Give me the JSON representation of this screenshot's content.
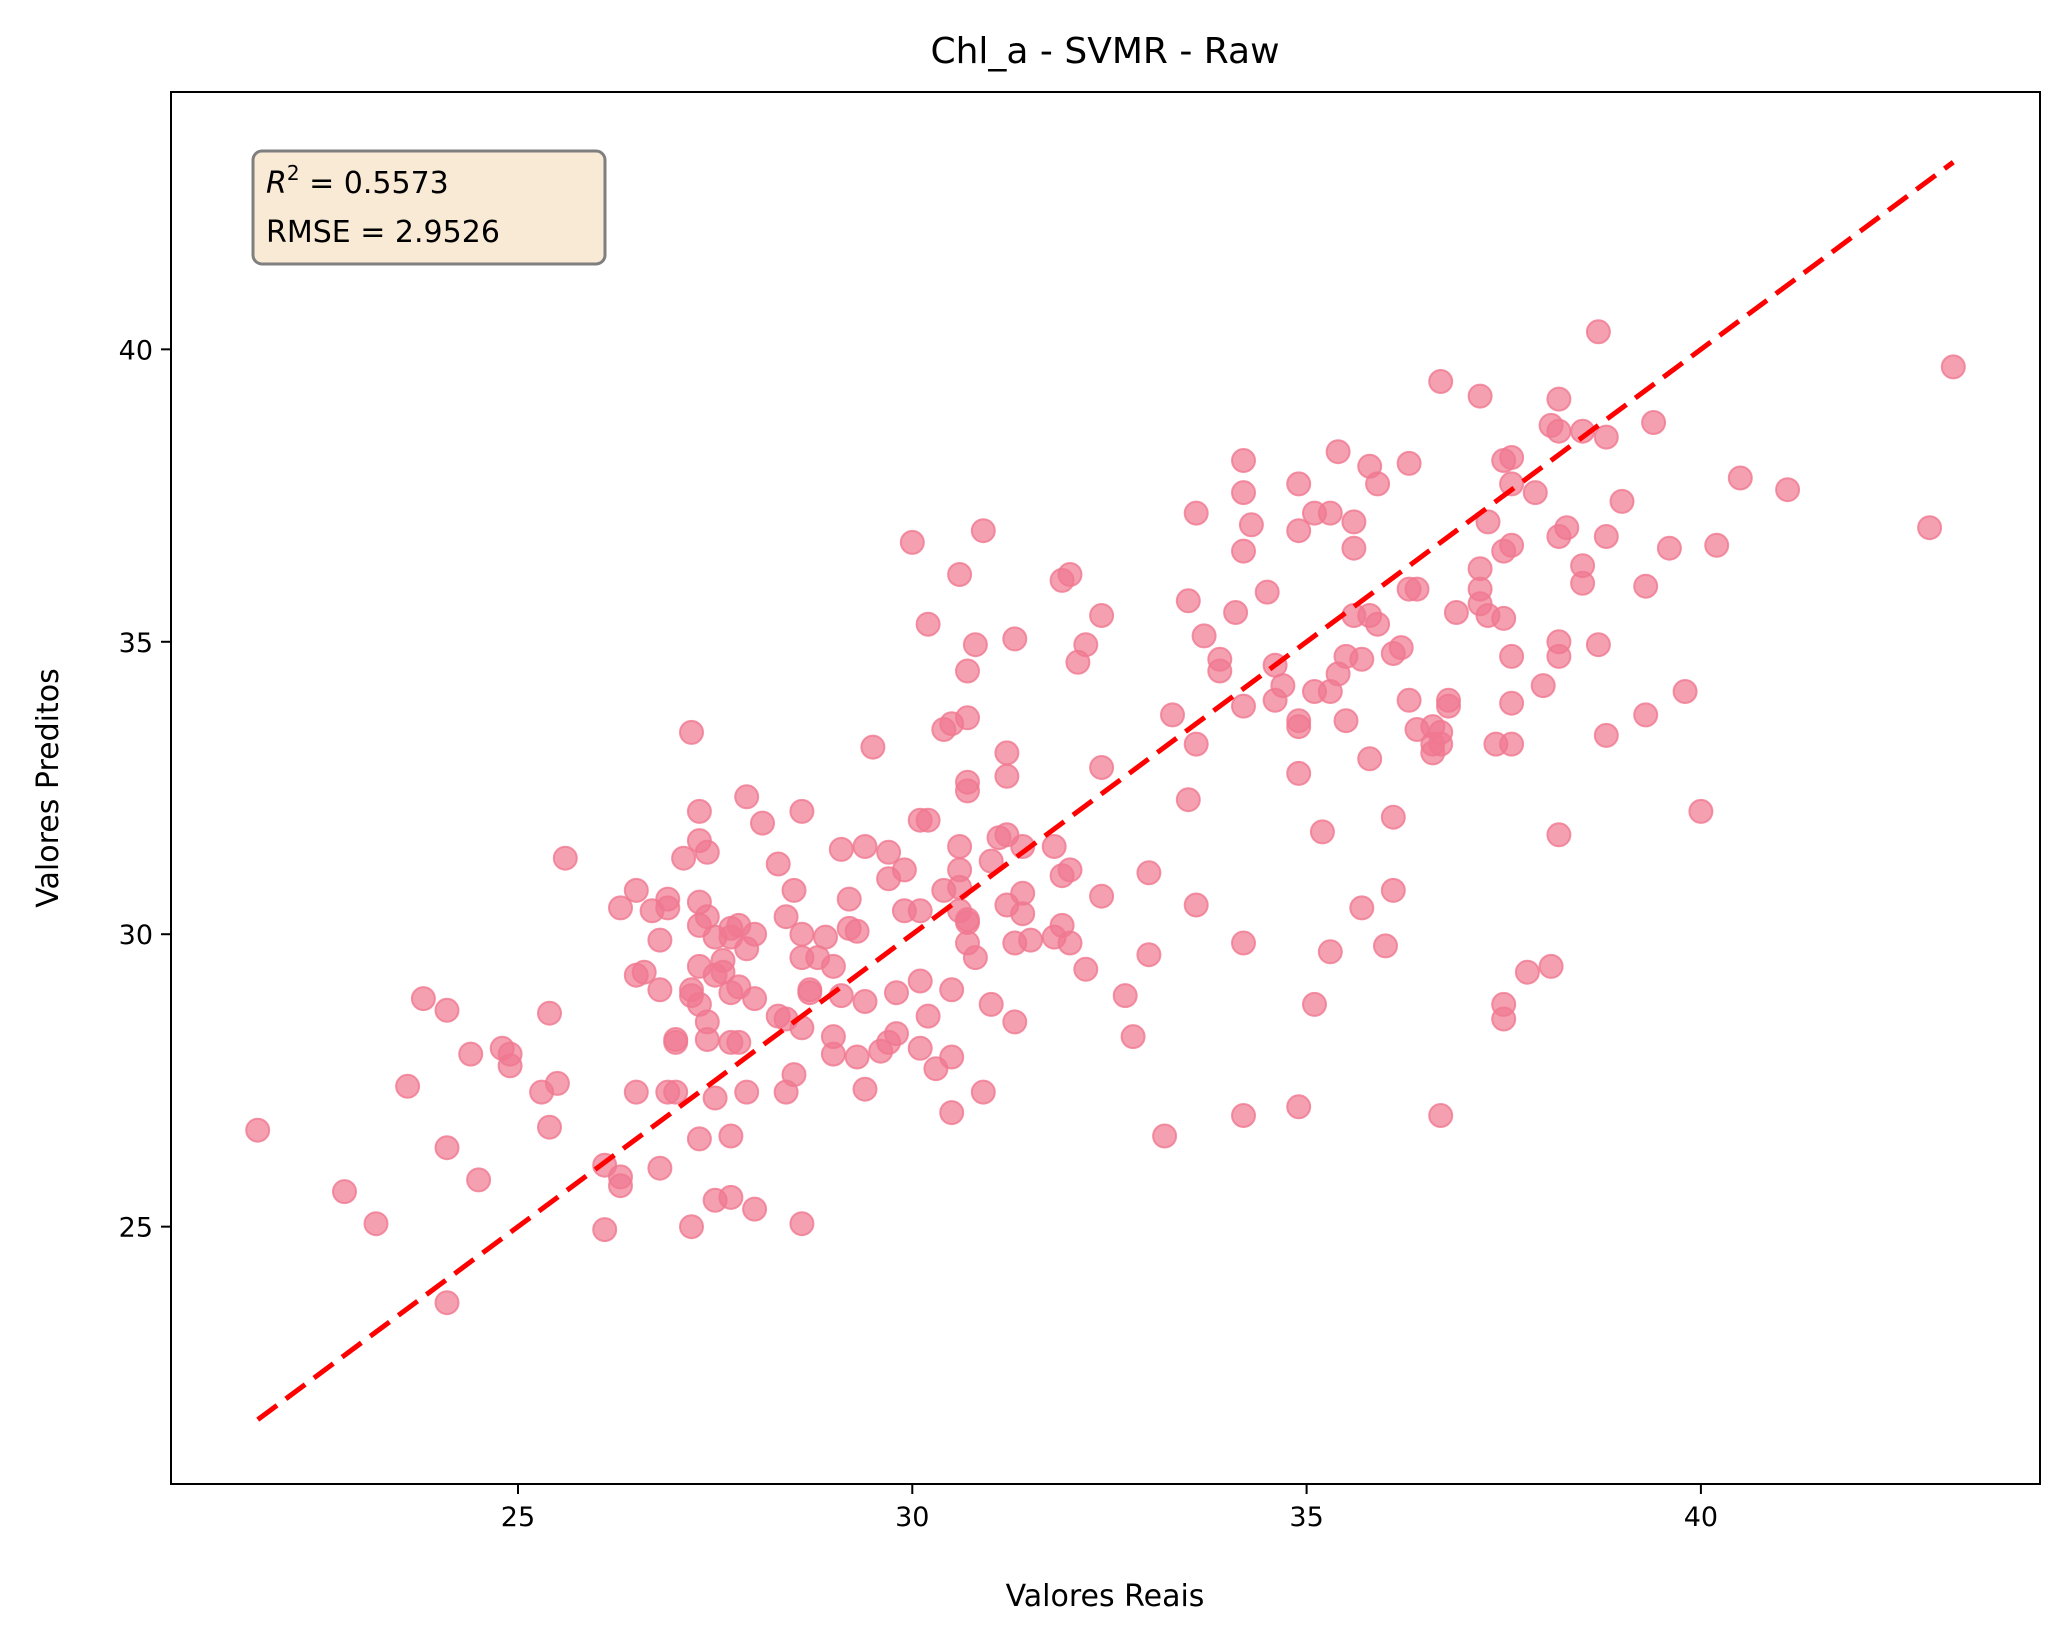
{
  "chart_data": {
    "type": "scatter",
    "title": "Chl_a - SVMR - Raw",
    "xlabel": "Valores Reais",
    "ylabel": "Valores Preditos",
    "xlim": [
      20.6,
      44.3
    ],
    "ylim": [
      20.6,
      44.4
    ],
    "xticks": [
      25,
      30,
      35,
      40
    ],
    "yticks": [
      25,
      30,
      35,
      40
    ],
    "xtick_labels": [
      "25",
      "30",
      "35",
      "40"
    ],
    "ytick_labels": [
      "25",
      "30",
      "35",
      "40"
    ],
    "grid": false,
    "annotation": {
      "r2_label": "R",
      "r2_sup": "2",
      "r2_value": " = 0.5573",
      "rmse_text": "RMSE = 2.9526",
      "position": "top-left",
      "fill": "#f5deb3",
      "edge": "#7f7f7f"
    },
    "reference_line": {
      "from": [
        21.7,
        21.7
      ],
      "to": [
        43.2,
        43.2
      ],
      "color": "#ff0000",
      "style": "dashed"
    },
    "marker_color": "#f07890",
    "series": [
      {
        "points": [
          [
            21.7,
            26.65
          ],
          [
            22.8,
            25.6
          ],
          [
            23.2,
            25.05
          ],
          [
            23.6,
            27.4
          ],
          [
            23.8,
            28.9
          ],
          [
            24.1,
            28.7
          ],
          [
            24.1,
            26.35
          ],
          [
            24.1,
            23.7
          ],
          [
            24.4,
            27.95
          ],
          [
            24.5,
            25.8
          ],
          [
            24.8,
            28.05
          ],
          [
            24.9,
            27.95
          ],
          [
            24.9,
            27.75
          ],
          [
            25.3,
            27.3
          ],
          [
            25.4,
            28.65
          ],
          [
            25.4,
            26.7
          ],
          [
            25.5,
            27.45
          ],
          [
            25.6,
            31.3
          ],
          [
            26.1,
            26.05
          ],
          [
            26.1,
            24.95
          ],
          [
            26.3,
            30.45
          ],
          [
            26.3,
            25.85
          ],
          [
            26.3,
            25.7
          ],
          [
            26.5,
            30.75
          ],
          [
            26.5,
            29.3
          ],
          [
            26.5,
            27.3
          ],
          [
            26.6,
            29.35
          ],
          [
            26.7,
            30.4
          ],
          [
            26.8,
            29.9
          ],
          [
            26.8,
            29.05
          ],
          [
            26.8,
            26.0
          ],
          [
            26.9,
            30.6
          ],
          [
            26.9,
            30.45
          ],
          [
            26.9,
            27.3
          ],
          [
            27.0,
            28.2
          ],
          [
            27.0,
            28.15
          ],
          [
            27.0,
            27.3
          ],
          [
            27.1,
            31.3
          ],
          [
            27.2,
            33.45
          ],
          [
            27.2,
            29.05
          ],
          [
            27.2,
            28.95
          ],
          [
            27.2,
            25.0
          ],
          [
            27.3,
            32.1
          ],
          [
            27.3,
            31.6
          ],
          [
            27.3,
            30.55
          ],
          [
            27.3,
            30.15
          ],
          [
            27.3,
            29.45
          ],
          [
            27.3,
            28.8
          ],
          [
            27.3,
            26.5
          ],
          [
            27.4,
            31.4
          ],
          [
            27.4,
            30.3
          ],
          [
            27.4,
            28.5
          ],
          [
            27.4,
            28.2
          ],
          [
            27.5,
            29.95
          ],
          [
            27.5,
            29.3
          ],
          [
            27.5,
            27.2
          ],
          [
            27.5,
            25.45
          ],
          [
            27.6,
            29.55
          ],
          [
            27.6,
            29.35
          ],
          [
            27.7,
            30.1
          ],
          [
            27.7,
            29.95
          ],
          [
            27.7,
            29.0
          ],
          [
            27.7,
            28.15
          ],
          [
            27.7,
            26.55
          ],
          [
            27.7,
            25.5
          ],
          [
            27.8,
            30.15
          ],
          [
            27.8,
            29.1
          ],
          [
            27.8,
            28.15
          ],
          [
            27.9,
            32.35
          ],
          [
            27.9,
            29.75
          ],
          [
            27.9,
            27.3
          ],
          [
            28.0,
            30.0
          ],
          [
            28.0,
            28.9
          ],
          [
            28.0,
            25.3
          ],
          [
            28.1,
            31.9
          ],
          [
            28.3,
            31.2
          ],
          [
            28.3,
            28.6
          ],
          [
            28.4,
            30.3
          ],
          [
            28.4,
            28.55
          ],
          [
            28.4,
            27.3
          ],
          [
            28.5,
            30.75
          ],
          [
            28.5,
            27.6
          ],
          [
            28.6,
            32.1
          ],
          [
            28.6,
            30.0
          ],
          [
            28.6,
            29.6
          ],
          [
            28.6,
            28.4
          ],
          [
            28.6,
            25.05
          ],
          [
            28.7,
            29.05
          ],
          [
            28.7,
            29.0
          ],
          [
            28.8,
            29.6
          ],
          [
            28.9,
            29.95
          ],
          [
            29.0,
            29.45
          ],
          [
            29.0,
            28.25
          ],
          [
            29.0,
            27.95
          ],
          [
            29.1,
            31.45
          ],
          [
            29.1,
            28.95
          ],
          [
            29.2,
            30.6
          ],
          [
            29.2,
            30.1
          ],
          [
            29.3,
            30.05
          ],
          [
            29.3,
            27.9
          ],
          [
            29.4,
            31.5
          ],
          [
            29.4,
            28.85
          ],
          [
            29.4,
            27.35
          ],
          [
            29.5,
            33.2
          ],
          [
            29.6,
            28.0
          ],
          [
            29.7,
            31.4
          ],
          [
            29.7,
            30.95
          ],
          [
            29.7,
            28.15
          ],
          [
            29.8,
            29.0
          ],
          [
            29.8,
            28.3
          ],
          [
            29.9,
            31.1
          ],
          [
            29.9,
            30.4
          ],
          [
            30.0,
            36.7
          ],
          [
            30.1,
            31.95
          ],
          [
            30.1,
            30.4
          ],
          [
            30.1,
            29.2
          ],
          [
            30.1,
            28.05
          ],
          [
            30.2,
            35.3
          ],
          [
            30.2,
            31.95
          ],
          [
            30.2,
            28.6
          ],
          [
            30.3,
            27.7
          ],
          [
            30.4,
            33.5
          ],
          [
            30.4,
            30.75
          ],
          [
            30.5,
            33.6
          ],
          [
            30.5,
            29.05
          ],
          [
            30.5,
            27.9
          ],
          [
            30.5,
            26.95
          ],
          [
            30.6,
            36.15
          ],
          [
            30.6,
            31.5
          ],
          [
            30.6,
            31.1
          ],
          [
            30.6,
            30.8
          ],
          [
            30.6,
            30.4
          ],
          [
            30.7,
            34.5
          ],
          [
            30.7,
            33.7
          ],
          [
            30.7,
            32.6
          ],
          [
            30.7,
            32.45
          ],
          [
            30.7,
            30.25
          ],
          [
            30.7,
            30.2
          ],
          [
            30.7,
            29.85
          ],
          [
            30.8,
            34.95
          ],
          [
            30.8,
            29.6
          ],
          [
            30.9,
            36.9
          ],
          [
            30.9,
            27.3
          ],
          [
            31.0,
            31.25
          ],
          [
            31.0,
            28.8
          ],
          [
            31.1,
            31.65
          ],
          [
            31.2,
            33.1
          ],
          [
            31.2,
            32.7
          ],
          [
            31.2,
            31.7
          ],
          [
            31.2,
            30.5
          ],
          [
            31.3,
            35.05
          ],
          [
            31.3,
            29.85
          ],
          [
            31.3,
            28.5
          ],
          [
            31.4,
            31.5
          ],
          [
            31.4,
            30.7
          ],
          [
            31.4,
            30.35
          ],
          [
            31.5,
            29.9
          ],
          [
            31.8,
            31.5
          ],
          [
            31.8,
            29.95
          ],
          [
            31.9,
            36.05
          ],
          [
            31.9,
            31.0
          ],
          [
            31.9,
            30.15
          ],
          [
            32.0,
            36.15
          ],
          [
            32.0,
            31.1
          ],
          [
            32.0,
            29.85
          ],
          [
            32.1,
            34.65
          ],
          [
            32.2,
            34.95
          ],
          [
            32.2,
            29.4
          ],
          [
            32.4,
            35.45
          ],
          [
            32.4,
            32.85
          ],
          [
            32.4,
            30.65
          ],
          [
            32.7,
            28.95
          ],
          [
            32.8,
            28.25
          ],
          [
            33.0,
            31.05
          ],
          [
            33.0,
            29.65
          ],
          [
            33.2,
            26.55
          ],
          [
            33.3,
            33.75
          ],
          [
            33.5,
            35.7
          ],
          [
            33.5,
            32.3
          ],
          [
            33.6,
            37.2
          ],
          [
            33.6,
            33.25
          ],
          [
            33.6,
            30.5
          ],
          [
            33.7,
            35.1
          ],
          [
            33.9,
            34.7
          ],
          [
            33.9,
            34.5
          ],
          [
            34.1,
            35.5
          ],
          [
            34.2,
            38.1
          ],
          [
            34.2,
            37.55
          ],
          [
            34.2,
            36.55
          ],
          [
            34.2,
            33.9
          ],
          [
            34.2,
            29.85
          ],
          [
            34.2,
            26.9
          ],
          [
            34.3,
            37.0
          ],
          [
            34.5,
            35.85
          ],
          [
            34.6,
            34.6
          ],
          [
            34.6,
            34.0
          ],
          [
            34.7,
            34.25
          ],
          [
            34.9,
            37.7
          ],
          [
            34.9,
            36.9
          ],
          [
            34.9,
            33.65
          ],
          [
            34.9,
            33.55
          ],
          [
            34.9,
            32.75
          ],
          [
            34.9,
            27.05
          ],
          [
            35.1,
            37.2
          ],
          [
            35.1,
            34.15
          ],
          [
            35.1,
            28.8
          ],
          [
            35.2,
            31.75
          ],
          [
            35.3,
            37.2
          ],
          [
            35.3,
            34.15
          ],
          [
            35.3,
            29.7
          ],
          [
            35.4,
            38.25
          ],
          [
            35.4,
            34.45
          ],
          [
            35.5,
            34.75
          ],
          [
            35.5,
            33.65
          ],
          [
            35.6,
            37.05
          ],
          [
            35.6,
            36.6
          ],
          [
            35.6,
            35.45
          ],
          [
            35.7,
            34.7
          ],
          [
            35.7,
            30.45
          ],
          [
            35.8,
            38.0
          ],
          [
            35.8,
            35.45
          ],
          [
            35.8,
            33.0
          ],
          [
            35.9,
            37.7
          ],
          [
            35.9,
            35.3
          ],
          [
            36.0,
            29.8
          ],
          [
            36.1,
            34.8
          ],
          [
            36.1,
            32.0
          ],
          [
            36.1,
            30.75
          ],
          [
            36.2,
            34.9
          ],
          [
            36.3,
            38.05
          ],
          [
            36.3,
            35.9
          ],
          [
            36.3,
            34.0
          ],
          [
            36.4,
            35.9
          ],
          [
            36.4,
            33.5
          ],
          [
            36.6,
            33.55
          ],
          [
            36.6,
            33.25
          ],
          [
            36.6,
            33.1
          ],
          [
            36.7,
            39.45
          ],
          [
            36.7,
            33.45
          ],
          [
            36.7,
            33.25
          ],
          [
            36.7,
            26.9
          ],
          [
            36.8,
            34.0
          ],
          [
            36.8,
            33.9
          ],
          [
            36.9,
            35.5
          ],
          [
            37.2,
            39.2
          ],
          [
            37.2,
            36.25
          ],
          [
            37.2,
            35.9
          ],
          [
            37.2,
            35.65
          ],
          [
            37.3,
            37.05
          ],
          [
            37.3,
            35.45
          ],
          [
            37.4,
            33.25
          ],
          [
            37.5,
            38.1
          ],
          [
            37.5,
            36.55
          ],
          [
            37.5,
            35.4
          ],
          [
            37.5,
            28.8
          ],
          [
            37.5,
            28.55
          ],
          [
            37.6,
            38.15
          ],
          [
            37.6,
            37.7
          ],
          [
            37.6,
            36.65
          ],
          [
            37.6,
            34.75
          ],
          [
            37.6,
            33.95
          ],
          [
            37.6,
            33.25
          ],
          [
            37.8,
            29.35
          ],
          [
            37.9,
            37.55
          ],
          [
            38.0,
            34.25
          ],
          [
            38.1,
            38.7
          ],
          [
            38.1,
            29.45
          ],
          [
            38.2,
            39.15
          ],
          [
            38.2,
            38.6
          ],
          [
            38.2,
            36.8
          ],
          [
            38.2,
            35.0
          ],
          [
            38.2,
            34.75
          ],
          [
            38.2,
            31.7
          ],
          [
            38.3,
            36.95
          ],
          [
            38.5,
            38.6
          ],
          [
            38.5,
            36.3
          ],
          [
            38.5,
            36.0
          ],
          [
            38.7,
            40.3
          ],
          [
            38.7,
            34.95
          ],
          [
            38.8,
            38.5
          ],
          [
            38.8,
            36.8
          ],
          [
            38.8,
            33.4
          ],
          [
            39.0,
            37.4
          ],
          [
            39.3,
            35.95
          ],
          [
            39.3,
            33.75
          ],
          [
            39.4,
            38.75
          ],
          [
            39.6,
            36.6
          ],
          [
            39.8,
            34.15
          ],
          [
            40.0,
            32.1
          ],
          [
            40.2,
            36.65
          ],
          [
            40.5,
            37.8
          ],
          [
            41.1,
            37.6
          ],
          [
            42.9,
            36.95
          ],
          [
            43.2,
            39.7
          ]
        ]
      }
    ]
  }
}
